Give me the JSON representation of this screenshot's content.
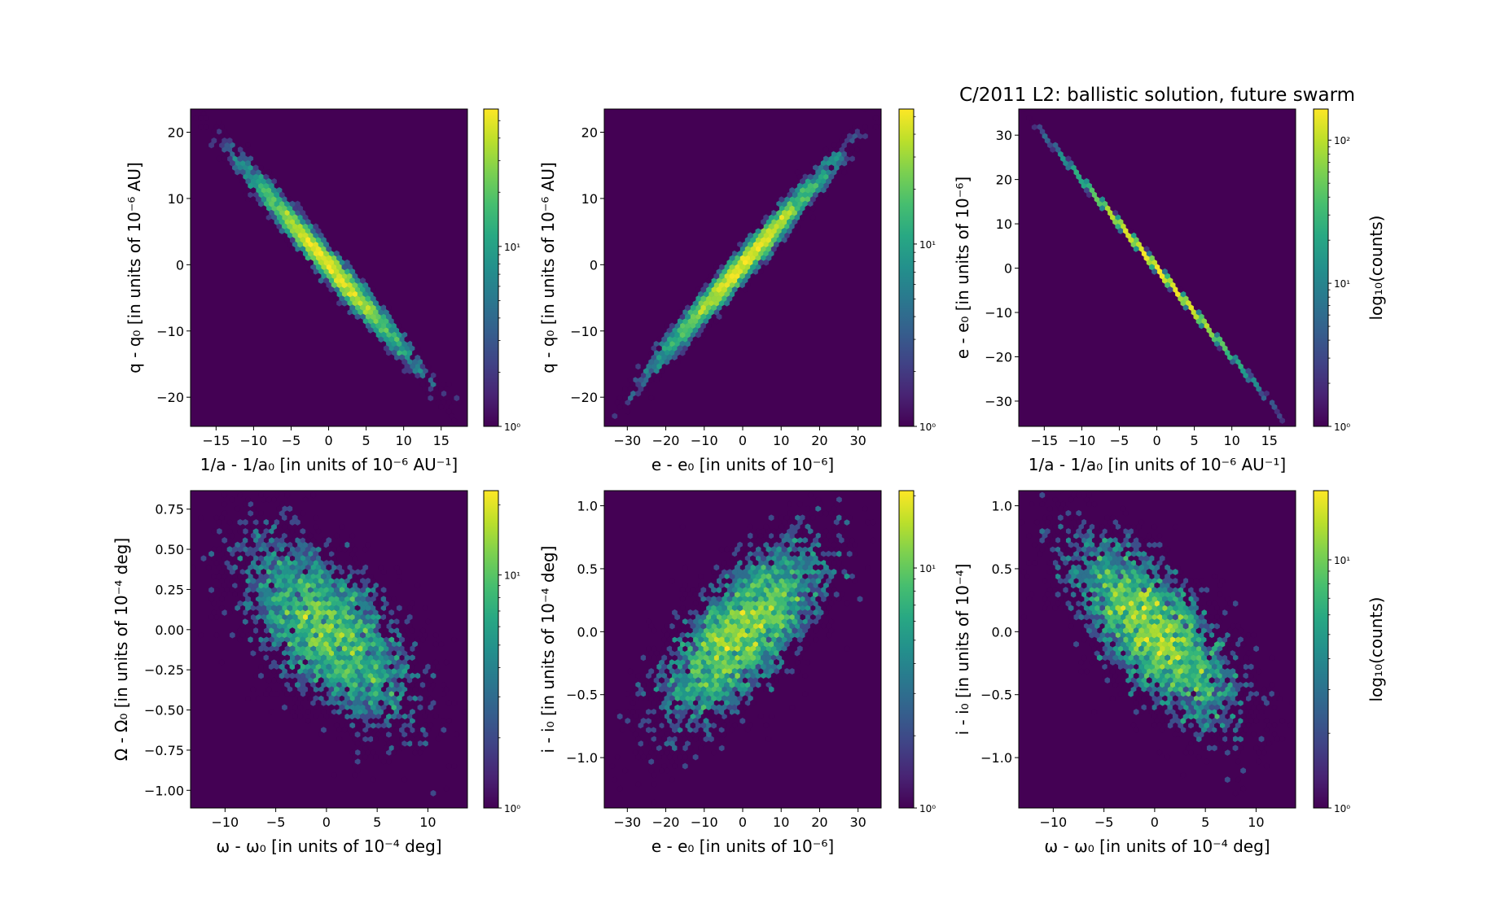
{
  "chart_data": {
    "type": "heatmap",
    "subtype": "hexbin",
    "title": "C/2011 L2: ballistic solution, future swarm",
    "colorbar_label": "log₁₀(counts)",
    "colorbar_scale": "log",
    "colormap": "viridis",
    "panels": [
      {
        "xlabel": "1/a - 1/a₀ [in units of 10⁻⁶ AU⁻¹]",
        "ylabel": "q - q₀ [in units of 10⁻⁶ AU]",
        "xlim": [
          -18.4,
          18.5
        ],
        "ylim": [
          -24.4,
          23.5
        ],
        "xticks": [
          -15,
          -10,
          -5,
          0,
          5,
          10,
          15
        ],
        "xticklabels": [
          "−15",
          "−10",
          "−5",
          "0",
          "5",
          "10",
          "15"
        ],
        "yticks": [
          -20,
          -10,
          0,
          10,
          20
        ],
        "yticklabels": [
          "−20",
          "−10",
          "0",
          "10",
          "20"
        ],
        "distribution": {
          "x_mean": 0,
          "y_mean": 0,
          "x_sd": 5.5,
          "y_sd": 7.2,
          "corr": -0.985,
          "samples": 5000
        },
        "clim": [
          1,
          58
        ],
        "cbticks": [
          1,
          10
        ],
        "cbticklabels": [
          "10⁰",
          "10¹"
        ],
        "show_cblabel": false
      },
      {
        "xlabel": "e - e₀ [in units of 10⁻⁶]",
        "ylabel": "q - q₀ [in units of 10⁻⁶ AU]",
        "xlim": [
          -36,
          36
        ],
        "ylim": [
          -24.4,
          23.5
        ],
        "xticks": [
          -30,
          -20,
          -10,
          0,
          10,
          20,
          30
        ],
        "xticklabels": [
          "−30",
          "−20",
          "−10",
          "0",
          "10",
          "20",
          "30"
        ],
        "yticks": [
          -20,
          -10,
          0,
          10,
          20
        ],
        "yticklabels": [
          "−20",
          "−10",
          "0",
          "10",
          "20"
        ],
        "distribution": {
          "x_mean": 0,
          "y_mean": 0,
          "x_sd": 11,
          "y_sd": 7.2,
          "corr": 0.985,
          "samples": 5000
        },
        "clim": [
          1,
          55
        ],
        "cbticks": [
          1,
          10
        ],
        "cbticklabels": [
          "10⁰",
          "10¹"
        ],
        "show_cblabel": false
      },
      {
        "xlabel": "1/a - 1/a₀ [in units of 10⁻⁶ AU⁻¹]",
        "ylabel": "e - e₀ [in units of 10⁻⁶]",
        "xlim": [
          -18.4,
          18.5
        ],
        "ylim": [
          -35.7,
          35.9
        ],
        "xticks": [
          -15,
          -10,
          -5,
          0,
          5,
          10,
          15
        ],
        "xticklabels": [
          "−15",
          "−10",
          "−5",
          "0",
          "5",
          "10",
          "15"
        ],
        "yticks": [
          -30,
          -20,
          -10,
          0,
          10,
          20,
          30
        ],
        "yticklabels": [
          "−30",
          "−20",
          "−10",
          "0",
          "10",
          "20",
          "30"
        ],
        "distribution": {
          "x_mean": 0,
          "y_mean": 0,
          "x_sd": 5.5,
          "y_sd": 11,
          "corr": -0.9997,
          "samples": 5000
        },
        "clim": [
          1,
          165
        ],
        "cbticks": [
          1,
          10,
          100
        ],
        "cbticklabels": [
          "10⁰",
          "10¹",
          "10²"
        ],
        "show_cblabel": true
      },
      {
        "xlabel": "ω - ω₀ [in units of 10⁻⁴ deg]",
        "ylabel": "Ω - Ω₀ [in units of 10⁻⁴ deg]",
        "xlim": [
          -13.4,
          13.9
        ],
        "ylim": [
          -1.11,
          0.865
        ],
        "xticks": [
          -10,
          -5,
          0,
          5,
          10
        ],
        "xticklabels": [
          "−10",
          "−5",
          "0",
          "5",
          "10"
        ],
        "yticks": [
          -1,
          -0.75,
          -0.5,
          -0.25,
          0,
          0.25,
          0.5,
          0.75
        ],
        "yticklabels": [
          "−1.00",
          "−0.75",
          "−0.50",
          "−0.25",
          "0.00",
          "0.25",
          "0.50",
          "0.75"
        ],
        "distribution": {
          "x_mean": 0,
          "y_mean": 0,
          "x_sd": 4.3,
          "y_sd": 0.3,
          "corr": -0.6,
          "samples": 5000
        },
        "clim": [
          1,
          23
        ],
        "cbticks": [
          1,
          10
        ],
        "cbticklabels": [
          "10⁰",
          "10¹"
        ],
        "show_cblabel": false
      },
      {
        "xlabel": "e - e₀ [in units of 10⁻⁶]",
        "ylabel": "i - i₀ [in units of 10⁻⁴ deg]",
        "xlim": [
          -36,
          36
        ],
        "ylim": [
          -1.4,
          1.12
        ],
        "xticks": [
          -30,
          -20,
          -10,
          0,
          10,
          20,
          30
        ],
        "xticklabels": [
          "−30",
          "−20",
          "−10",
          "0",
          "10",
          "20",
          "30"
        ],
        "yticks": [
          -1,
          -0.5,
          0,
          0.5,
          1
        ],
        "yticklabels": [
          "−1.0",
          "−0.5",
          "0.0",
          "0.5",
          "1.0"
        ],
        "distribution": {
          "x_mean": 0,
          "y_mean": 0,
          "x_sd": 11,
          "y_sd": 0.38,
          "corr": 0.7,
          "samples": 5000
        },
        "clim": [
          1,
          21
        ],
        "cbticks": [
          1,
          10
        ],
        "cbticklabels": [
          "10⁰",
          "10¹"
        ],
        "show_cblabel": false
      },
      {
        "xlabel": "ω - ω₀ [in units of 10⁻⁴ deg]",
        "ylabel": "i - i₀ [in units of 10⁻⁴]",
        "xlim": [
          -13.4,
          13.9
        ],
        "ylim": [
          -1.4,
          1.12
        ],
        "xticks": [
          -10,
          -5,
          0,
          5,
          10
        ],
        "xticklabels": [
          "−10",
          "−5",
          "0",
          "5",
          "10"
        ],
        "yticks": [
          -1,
          -0.5,
          0,
          0.5,
          1
        ],
        "yticklabels": [
          "−1.0",
          "−0.5",
          "0.0",
          "0.5",
          "1.0"
        ],
        "distribution": {
          "x_mean": 0,
          "y_mean": 0,
          "x_sd": 4.3,
          "y_sd": 0.38,
          "corr": -0.7,
          "samples": 5000
        },
        "clim": [
          1,
          19
        ],
        "cbticks": [
          1,
          10
        ],
        "cbticklabels": [
          "10⁰",
          "10¹"
        ],
        "show_cblabel": true
      }
    ]
  }
}
